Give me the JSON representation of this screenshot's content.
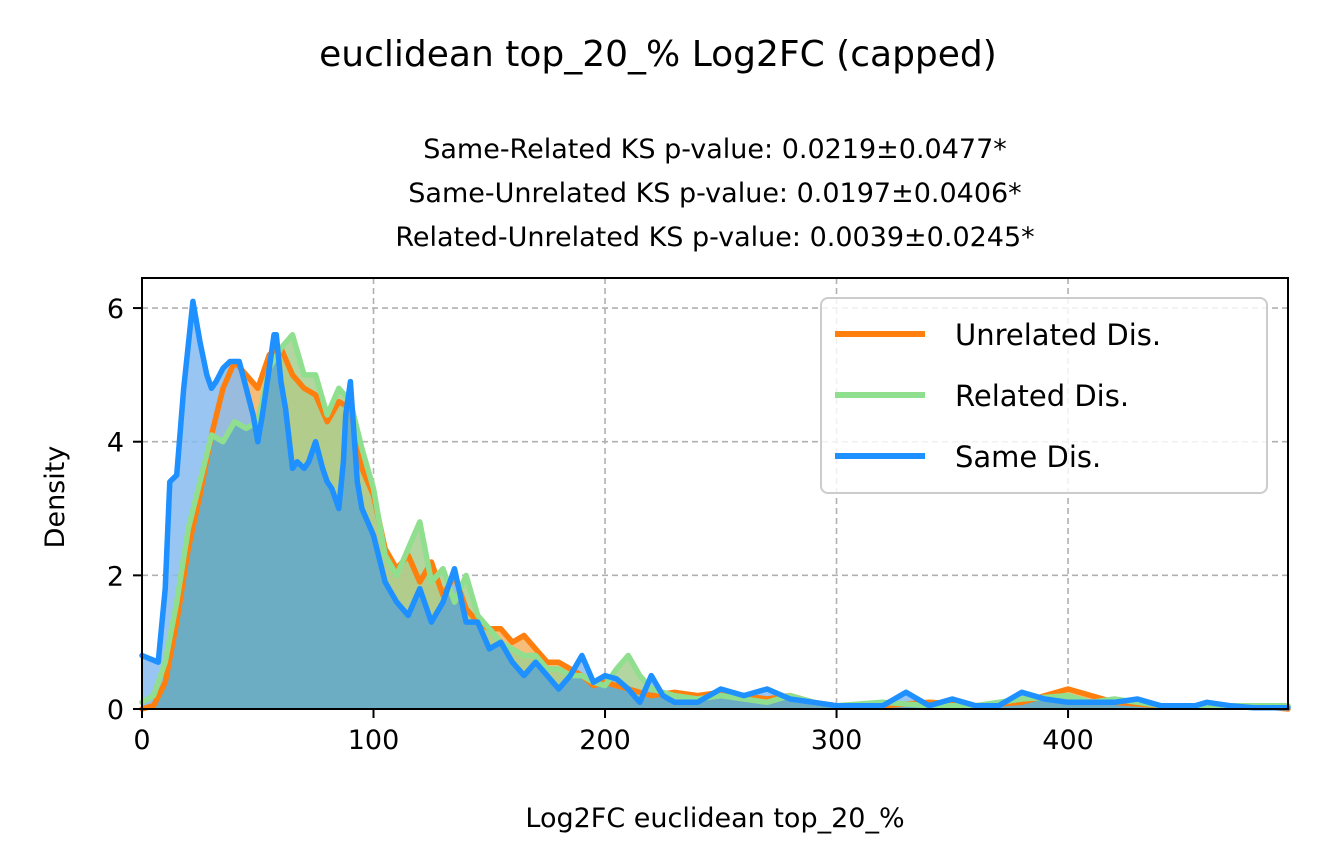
{
  "chart_data": {
    "type": "area",
    "suptitle": "euclidean top_20_% Log2FC (capped)",
    "subtitle_lines": [
      "Same-Related KS p-value: 0.0219±0.0477*",
      "Same-Unrelated KS p-value: 0.0197±0.0406*",
      "Related-Unrelated KS p-value: 0.0039±0.0245*"
    ],
    "xlabel": "Log2FC euclidean top_20_%",
    "ylabel": "Density",
    "xlim": [
      0,
      495
    ],
    "ylim": [
      0,
      6.45
    ],
    "xticks": [
      0,
      100,
      200,
      300,
      400
    ],
    "yticks": [
      0,
      2,
      4,
      6
    ],
    "grid": true,
    "legend_position": "upper right",
    "series": [
      {
        "name": "Unrelated Dis.",
        "color": "#ff7f0e",
        "fill": "#f5b061",
        "x": [
          0,
          5,
          10,
          15,
          20,
          25,
          30,
          35,
          40,
          45,
          50,
          55,
          60,
          65,
          70,
          75,
          80,
          85,
          90,
          95,
          100,
          105,
          110,
          115,
          120,
          125,
          130,
          135,
          140,
          145,
          150,
          155,
          160,
          165,
          170,
          175,
          180,
          185,
          190,
          195,
          200,
          210,
          220,
          230,
          240,
          250,
          260,
          270,
          280,
          290,
          300,
          320,
          340,
          360,
          380,
          400,
          410,
          420,
          440,
          460,
          480,
          495
        ],
        "y": [
          0.0,
          0.05,
          0.4,
          1.3,
          2.4,
          3.2,
          4.1,
          4.8,
          5.2,
          5.0,
          4.8,
          5.3,
          5.4,
          5.0,
          4.8,
          4.7,
          4.3,
          4.6,
          4.5,
          3.6,
          3.2,
          2.4,
          2.1,
          2.3,
          1.9,
          2.2,
          1.7,
          2.0,
          1.5,
          1.3,
          1.2,
          1.2,
          1.0,
          1.1,
          0.9,
          0.7,
          0.7,
          0.6,
          0.5,
          0.35,
          0.4,
          0.3,
          0.2,
          0.25,
          0.2,
          0.25,
          0.2,
          0.15,
          0.2,
          0.1,
          0.05,
          0.05,
          0.1,
          0.05,
          0.1,
          0.3,
          0.2,
          0.1,
          0.05,
          0.05,
          0.05,
          0.0
        ]
      },
      {
        "name": "Related Dis.",
        "color": "#90df8f",
        "fill": "#a6cf8f",
        "x": [
          0,
          5,
          10,
          15,
          20,
          25,
          30,
          35,
          40,
          45,
          50,
          55,
          60,
          65,
          70,
          75,
          80,
          85,
          90,
          95,
          100,
          105,
          110,
          115,
          120,
          125,
          130,
          135,
          140,
          145,
          150,
          155,
          160,
          165,
          170,
          175,
          180,
          185,
          190,
          195,
          200,
          205,
          210,
          215,
          220,
          230,
          240,
          250,
          260,
          270,
          280,
          290,
          300,
          320,
          340,
          360,
          380,
          400,
          410,
          420,
          440,
          460,
          480,
          495
        ],
        "y": [
          0.1,
          0.2,
          0.7,
          1.6,
          2.7,
          3.4,
          4.1,
          4.0,
          4.3,
          4.2,
          4.3,
          5.1,
          5.4,
          5.6,
          5.0,
          5.0,
          4.4,
          4.8,
          4.6,
          3.9,
          3.3,
          2.3,
          2.0,
          2.4,
          2.8,
          1.9,
          2.1,
          1.6,
          2.0,
          1.4,
          1.2,
          1.0,
          0.9,
          0.8,
          0.8,
          0.6,
          0.6,
          0.5,
          0.5,
          0.4,
          0.35,
          0.6,
          0.8,
          0.5,
          0.3,
          0.2,
          0.15,
          0.2,
          0.15,
          0.1,
          0.2,
          0.1,
          0.05,
          0.1,
          0.05,
          0.05,
          0.15,
          0.2,
          0.1,
          0.15,
          0.05,
          0.05,
          0.05,
          0.05
        ]
      },
      {
        "name": "Same Dis.",
        "color": "#1e90ff",
        "fill": "#87bbf0",
        "x": [
          0,
          7,
          10,
          12,
          15,
          18,
          22,
          25,
          28,
          30,
          32,
          35,
          38,
          42,
          45,
          48,
          50,
          52,
          55,
          57,
          58,
          60,
          62,
          65,
          67,
          70,
          72,
          75,
          78,
          80,
          82,
          85,
          87,
          88,
          90,
          92,
          93,
          95,
          100,
          105,
          110,
          115,
          120,
          125,
          130,
          135,
          140,
          145,
          150,
          155,
          160,
          165,
          170,
          175,
          180,
          185,
          190,
          195,
          200,
          205,
          210,
          215,
          220,
          225,
          230,
          240,
          250,
          260,
          270,
          280,
          290,
          300,
          320,
          330,
          340,
          350,
          360,
          370,
          380,
          390,
          400,
          410,
          420,
          430,
          440,
          450,
          455,
          460,
          470,
          480,
          495
        ],
        "y": [
          0.8,
          0.7,
          1.8,
          3.4,
          3.5,
          4.8,
          6.1,
          5.5,
          5.0,
          4.8,
          4.9,
          5.1,
          5.2,
          5.2,
          4.8,
          4.4,
          4.0,
          4.4,
          5.1,
          5.6,
          5.6,
          4.9,
          4.5,
          3.6,
          3.7,
          3.6,
          3.7,
          4.0,
          3.6,
          3.4,
          3.3,
          3.0,
          3.7,
          4.4,
          4.9,
          3.9,
          3.4,
          3.0,
          2.6,
          1.9,
          1.6,
          1.4,
          1.8,
          1.3,
          1.6,
          2.1,
          1.3,
          1.3,
          0.9,
          1.0,
          0.7,
          0.5,
          0.7,
          0.5,
          0.3,
          0.5,
          0.8,
          0.4,
          0.5,
          0.45,
          0.3,
          0.1,
          0.5,
          0.2,
          0.1,
          0.1,
          0.3,
          0.2,
          0.3,
          0.15,
          0.1,
          0.05,
          0.05,
          0.25,
          0.05,
          0.15,
          0.05,
          0.05,
          0.25,
          0.15,
          0.1,
          0.1,
          0.1,
          0.15,
          0.05,
          0.05,
          0.05,
          0.1,
          0.05,
          0.02,
          0.02
        ]
      }
    ],
    "overlap_fill": "#6cadc4"
  }
}
